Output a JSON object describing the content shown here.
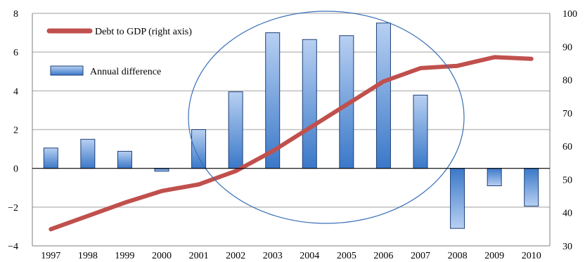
{
  "chart_data": {
    "type": "bar",
    "categories": [
      "1997",
      "1998",
      "1999",
      "2000",
      "2001",
      "2002",
      "2003",
      "2004",
      "2005",
      "2006",
      "2007",
      "2008",
      "2009",
      "2010"
    ],
    "series": [
      {
        "name": "Annual difference",
        "type": "bar",
        "axis": "left",
        "values": [
          1.05,
          1.5,
          0.88,
          -0.15,
          2.0,
          3.95,
          7.0,
          6.65,
          6.85,
          7.5,
          3.78,
          -3.1,
          -0.9,
          -1.95
        ]
      },
      {
        "name": "Debt to GDP (right axis)",
        "type": "line",
        "axis": "right",
        "values": [
          35.0,
          39.0,
          43.0,
          46.5,
          48.5,
          52.5,
          58.5,
          65.5,
          72.5,
          79.5,
          83.5,
          84.2,
          86.8,
          86.3
        ]
      }
    ],
    "y_left": {
      "ticks": [
        "8",
        "6",
        "4",
        "2",
        "0",
        "−2",
        "−4"
      ],
      "range": [
        -4,
        8
      ]
    },
    "y_right": {
      "ticks": [
        "100",
        "90",
        "80",
        "70",
        "60",
        "50",
        "40",
        "30"
      ],
      "range": [
        30,
        100
      ]
    },
    "colors": {
      "line": "#C0504D",
      "bar_light": "#B8D0F2",
      "bar_dark": "#3A78C8",
      "bar_border": "#1F3F78",
      "grid": "#BFBFBF",
      "ellipse": "#3A70B8"
    },
    "annotation": "ellipse highlighting 2002-2006",
    "grid": "horizontal",
    "legend_position": "top-left"
  }
}
